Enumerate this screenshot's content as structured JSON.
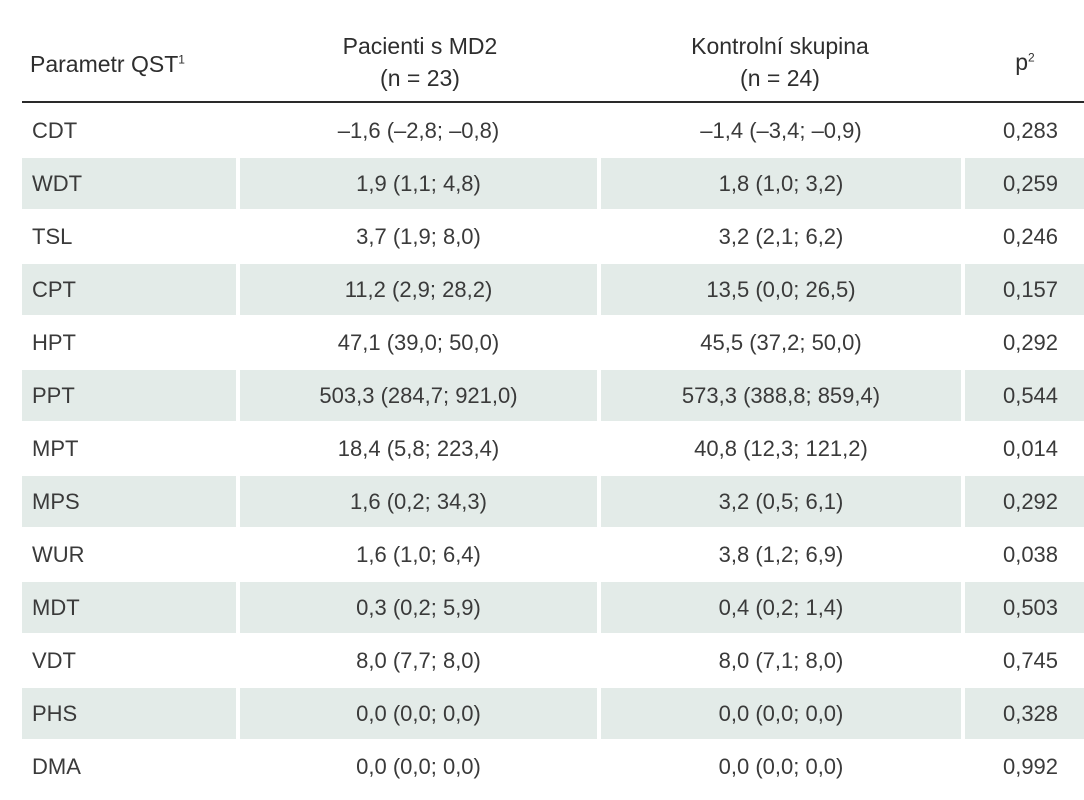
{
  "header": {
    "param_label": "Parametr QST",
    "param_sup": "1",
    "patients_line1": "Pacienti s MD2",
    "patients_line2": "(n = 23)",
    "control_line1": "Kontrolní skupina",
    "control_line2": "(n = 24)",
    "p_label": "p",
    "p_sup": "2"
  },
  "colors": {
    "shaded_row": "#e3ebe8",
    "header_rule": "#2a2a2a",
    "text": "#3a3a3a"
  },
  "rows": [
    {
      "param": "CDT",
      "patients": "–1,6 (–2,8; –0,8)",
      "control": "–1,4 (–3,4; –0,9)",
      "p": "0,283"
    },
    {
      "param": "WDT",
      "patients": "1,9 (1,1; 4,8)",
      "control": "1,8 (1,0; 3,2)",
      "p": "0,259"
    },
    {
      "param": "TSL",
      "patients": "3,7 (1,9; 8,0)",
      "control": "3,2 (2,1; 6,2)",
      "p": "0,246"
    },
    {
      "param": "CPT",
      "patients": "11,2 (2,9; 28,2)",
      "control": "13,5 (0,0; 26,5)",
      "p": "0,157"
    },
    {
      "param": "HPT",
      "patients": "47,1 (39,0; 50,0)",
      "control": "45,5 (37,2; 50,0)",
      "p": "0,292"
    },
    {
      "param": "PPT",
      "patients": "503,3 (284,7; 921,0)",
      "control": "573,3 (388,8; 859,4)",
      "p": "0,544"
    },
    {
      "param": "MPT",
      "patients": "18,4 (5,8; 223,4)",
      "control": "40,8 (12,3; 121,2)",
      "p": "0,014"
    },
    {
      "param": "MPS",
      "patients": "1,6 (0,2; 34,3)",
      "control": "3,2 (0,5; 6,1)",
      "p": "0,292"
    },
    {
      "param": "WUR",
      "patients": "1,6 (1,0; 6,4)",
      "control": "3,8 (1,2; 6,9)",
      "p": "0,038"
    },
    {
      "param": "MDT",
      "patients": "0,3 (0,2; 5,9)",
      "control": "0,4 (0,2; 1,4)",
      "p": "0,503"
    },
    {
      "param": "VDT",
      "patients": "8,0 (7,7; 8,0)",
      "control": "8,0 (7,1; 8,0)",
      "p": "0,745"
    },
    {
      "param": "PHS",
      "patients": "0,0 (0,0; 0,0)",
      "control": "0,0 (0,0; 0,0)",
      "p": "0,328"
    },
    {
      "param": "DMA",
      "patients": "0,0 (0,0; 0,0)",
      "control": "0,0 (0,0; 0,0)",
      "p": "0,992"
    }
  ]
}
